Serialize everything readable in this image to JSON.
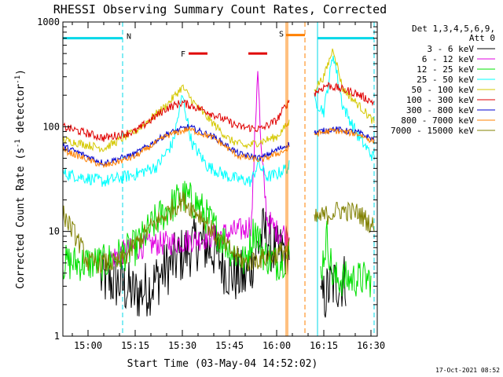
{
  "title": "RHESSI Observing Summary Count Rates, Corrected",
  "xlabel": "Start Time (03-May-04 14:52:02)",
  "ylabel": "Corrected Count Rate (s",
  "ylabel_sup": "-1",
  "ylabel_mid": " detector",
  "ylabel_sup2": "-1",
  "ylabel_end": ")",
  "footer_date": "17-Oct-2021 08:52",
  "legend": {
    "header_line1": "Det 1,3,4,5,6,9,",
    "header_line2": "Att 0",
    "entries": [
      {
        "label": "3 - 6 keV",
        "color": "#000000"
      },
      {
        "label": "6 - 12 keV",
        "color": "#e000e0"
      },
      {
        "label": "12 - 25 keV",
        "color": "#00e000"
      },
      {
        "label": "25 - 50 keV",
        "color": "#00ffff"
      },
      {
        "label": "50 - 100 keV",
        "color": "#d4c800"
      },
      {
        "label": "100 - 300 keV",
        "color": "#e00000"
      },
      {
        "label": "300 - 800 keV",
        "color": "#0000d0"
      },
      {
        "label": "800 - 7000 keV",
        "color": "#ff8000"
      },
      {
        "label": "7000 - 15000 keV",
        "color": "#808000"
      }
    ]
  },
  "markers": {
    "night": "N",
    "flare": "F",
    "saa": "S",
    "night_color": "#00d8e8",
    "flare_color": "#e00000",
    "saa_color": "#ff8000"
  },
  "chart_data": {
    "type": "line",
    "x_unit": "time (UT, 03-May-04)",
    "xlim": [
      "14:52",
      "16:32"
    ],
    "x_ticks": [
      "15:00",
      "15:15",
      "15:30",
      "15:45",
      "16:00",
      "16:15",
      "16:30"
    ],
    "yscale": "log",
    "ylim": [
      1,
      1000
    ],
    "y_ticks": [
      "1",
      "10",
      "100",
      "1000"
    ],
    "night_intervals": [
      [
        "14:52",
        "15:11"
      ],
      [
        "16:13",
        "16:31"
      ]
    ],
    "flare_intervals": [
      [
        "15:32",
        "15:38"
      ],
      [
        "15:51",
        "15:57"
      ]
    ],
    "saa_interval": [
      "16:03",
      "16:09"
    ],
    "data_gap": [
      "16:04",
      "16:12"
    ],
    "series": [
      {
        "name": "3 - 6 keV",
        "color": "#000000",
        "noise": 0.28,
        "points": [
          [
            "15:04",
            3.5
          ],
          [
            "15:10",
            3.2
          ],
          [
            "15:15",
            2.5
          ],
          [
            "15:20",
            3.0
          ],
          [
            "15:25",
            4.5
          ],
          [
            "15:30",
            6.0
          ],
          [
            "15:35",
            8.0
          ],
          [
            "15:40",
            6.5
          ],
          [
            "15:45",
            4.0
          ],
          [
            "15:50",
            3.5
          ],
          [
            "15:53",
            6.0
          ],
          [
            "15:56",
            10.0
          ],
          [
            "16:00",
            6.0
          ],
          [
            "16:04",
            7.0
          ],
          [
            "16:14",
            2.0
          ],
          [
            "16:17",
            3.0
          ],
          [
            "16:22",
            3.5
          ]
        ]
      },
      {
        "name": "6 - 12 keV",
        "color": "#e000e0",
        "noise": 0.12,
        "points": [
          [
            "15:07",
            5.5
          ],
          [
            "15:12",
            6.5
          ],
          [
            "15:20",
            7.5
          ],
          [
            "15:30",
            8.0
          ],
          [
            "15:40",
            9.0
          ],
          [
            "15:50",
            10.5
          ],
          [
            "15:52",
            12.0
          ],
          [
            "15:54",
            400.0
          ],
          [
            "15:55",
            60.0
          ],
          [
            "15:57",
            13.0
          ],
          [
            "16:00",
            10.0
          ],
          [
            "16:04",
            9.5
          ]
        ]
      },
      {
        "name": "12 - 25 keV",
        "color": "#00e000",
        "noise": 0.18,
        "points": [
          [
            "14:52",
            5.0
          ],
          [
            "15:05",
            5.0
          ],
          [
            "15:15",
            7.0
          ],
          [
            "15:22",
            13.0
          ],
          [
            "15:30",
            22.0
          ],
          [
            "15:35",
            18.0
          ],
          [
            "15:40",
            11.0
          ],
          [
            "15:45",
            7.0
          ],
          [
            "15:50",
            5.0
          ],
          [
            "15:53",
            11.0
          ],
          [
            "15:56",
            6.0
          ],
          [
            "16:00",
            5.0
          ],
          [
            "16:04",
            6.0
          ],
          [
            "16:14",
            4.0
          ],
          [
            "16:16",
            9.0
          ],
          [
            "16:18",
            3.5
          ],
          [
            "16:30",
            3.5
          ]
        ]
      },
      {
        "name": "25 - 50 keV",
        "color": "#00ffff",
        "noise": 0.06,
        "points": [
          [
            "14:52",
            36.0
          ],
          [
            "15:05",
            30.0
          ],
          [
            "15:15",
            35.0
          ],
          [
            "15:22",
            42.0
          ],
          [
            "15:27",
            70.0
          ],
          [
            "15:30",
            200.0
          ],
          [
            "15:33",
            70.0
          ],
          [
            "15:38",
            42.0
          ],
          [
            "15:45",
            33.0
          ],
          [
            "15:52",
            30.0
          ],
          [
            "15:54",
            45.0
          ],
          [
            "15:57",
            33.0
          ],
          [
            "16:00",
            35.0
          ],
          [
            "16:04",
            42.0
          ],
          [
            "16:12",
            180.0
          ],
          [
            "16:15",
            140.0
          ],
          [
            "16:18",
            500.0
          ],
          [
            "16:21",
            160.0
          ],
          [
            "16:26",
            80.0
          ],
          [
            "16:31",
            50.0
          ]
        ]
      },
      {
        "name": "50 - 100 keV",
        "color": "#d4c800",
        "noise": 0.04,
        "points": [
          [
            "14:52",
            75.0
          ],
          [
            "15:05",
            62.0
          ],
          [
            "15:15",
            90.0
          ],
          [
            "15:25",
            160.0
          ],
          [
            "15:30",
            240.0
          ],
          [
            "15:35",
            150.0
          ],
          [
            "15:45",
            75.0
          ],
          [
            "15:50",
            65.0
          ],
          [
            "16:00",
            80.0
          ],
          [
            "16:04",
            110.0
          ],
          [
            "16:12",
            230.0
          ],
          [
            "16:15",
            300.0
          ],
          [
            "16:18",
            560.0
          ],
          [
            "16:21",
            230.0
          ],
          [
            "16:28",
            140.0
          ],
          [
            "16:31",
            110.0
          ]
        ]
      },
      {
        "name": "100 - 300 keV",
        "color": "#e00000",
        "noise": 0.04,
        "points": [
          [
            "14:52",
            100.0
          ],
          [
            "15:05",
            78.0
          ],
          [
            "15:15",
            90.0
          ],
          [
            "15:25",
            150.0
          ],
          [
            "15:30",
            170.0
          ],
          [
            "15:38",
            140.0
          ],
          [
            "15:48",
            100.0
          ],
          [
            "15:55",
            95.0
          ],
          [
            "16:00",
            115.0
          ],
          [
            "16:04",
            180.0
          ],
          [
            "16:12",
            210.0
          ],
          [
            "16:16",
            250.0
          ],
          [
            "16:25",
            210.0
          ],
          [
            "16:31",
            170.0
          ]
        ]
      },
      {
        "name": "300 - 800 keV",
        "color": "#0000d0",
        "noise": 0.03,
        "points": [
          [
            "14:52",
            65.0
          ],
          [
            "15:05",
            45.0
          ],
          [
            "15:15",
            55.0
          ],
          [
            "15:25",
            85.0
          ],
          [
            "15:32",
            100.0
          ],
          [
            "15:40",
            80.0
          ],
          [
            "15:48",
            55.0
          ],
          [
            "15:55",
            50.0
          ],
          [
            "16:00",
            60.0
          ],
          [
            "16:04",
            68.0
          ],
          [
            "16:12",
            88.0
          ],
          [
            "16:18",
            95.0
          ],
          [
            "16:26",
            88.0
          ],
          [
            "16:31",
            75.0
          ]
        ]
      },
      {
        "name": "800 - 7000 keV",
        "color": "#ff8000",
        "noise": 0.03,
        "points": [
          [
            "14:52",
            60.0
          ],
          [
            "15:05",
            42.0
          ],
          [
            "15:15",
            52.0
          ],
          [
            "15:25",
            82.0
          ],
          [
            "15:32",
            95.0
          ],
          [
            "15:40",
            78.0
          ],
          [
            "15:48",
            52.0
          ],
          [
            "15:55",
            48.0
          ],
          [
            "16:00",
            55.0
          ],
          [
            "16:04",
            62.0
          ],
          [
            "16:12",
            85.0
          ],
          [
            "16:18",
            92.0
          ],
          [
            "16:26",
            85.0
          ],
          [
            "16:31",
            72.0
          ]
        ]
      },
      {
        "name": "7000 - 15000 keV",
        "color": "#808000",
        "noise": 0.1,
        "points": [
          [
            "14:52",
            15.0
          ],
          [
            "14:57",
            8.0
          ],
          [
            "15:00",
            5.0
          ],
          [
            "15:10",
            5.0
          ],
          [
            "15:20",
            11.0
          ],
          [
            "15:30",
            20.0
          ],
          [
            "15:36",
            14.0
          ],
          [
            "15:42",
            8.0
          ],
          [
            "15:50",
            5.0
          ],
          [
            "16:00",
            6.0
          ],
          [
            "16:04",
            7.0
          ],
          [
            "16:12",
            13.0
          ],
          [
            "16:20",
            16.0
          ],
          [
            "16:26",
            15.0
          ],
          [
            "16:31",
            11.0
          ]
        ]
      }
    ]
  }
}
